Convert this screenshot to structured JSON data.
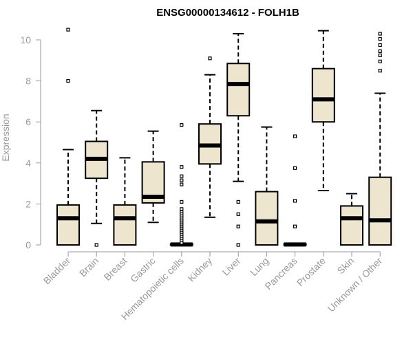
{
  "chart_data": {
    "type": "box",
    "title": "ENSG00000134612 - FOLH1B",
    "ylabel": "Expression",
    "xlabel": "",
    "ylim": [
      0,
      10.5
    ],
    "yticks": [
      0,
      2,
      4,
      6,
      8,
      10
    ],
    "grid": false,
    "colors": {
      "box_fill": "#ede5cd",
      "box_stroke": "#000000",
      "axis": "#999999",
      "label": "#999999"
    },
    "categories": [
      "Bladder",
      "Brain",
      "Breast",
      "Gastric",
      "Hematopoietic cells",
      "Kidney",
      "Liver",
      "Lung",
      "Pancreas",
      "Prostate",
      "Skin",
      "Unknown / Other"
    ],
    "boxes": [
      {
        "category": "Bladder",
        "min": 0,
        "q1": 0,
        "median": 1.3,
        "q3": 1.95,
        "max": 4.65,
        "outliers": [
          8.0,
          10.5
        ]
      },
      {
        "category": "Brain",
        "min": 1.05,
        "q1": 3.25,
        "median": 4.2,
        "q3": 5.05,
        "max": 6.55,
        "outliers": [
          0
        ]
      },
      {
        "category": "Breast",
        "min": 0,
        "q1": 0,
        "median": 1.3,
        "q3": 1.95,
        "max": 4.25,
        "outliers": []
      },
      {
        "category": "Gastric",
        "min": 1.1,
        "q1": 2.05,
        "median": 2.35,
        "q3": 4.05,
        "max": 5.55,
        "outliers": []
      },
      {
        "category": "Hematopoietic cells",
        "min": 0,
        "q1": 0,
        "median": 0.02,
        "q3": 0.05,
        "max": 0.05,
        "outliers": [
          5.85,
          3.8,
          3.35,
          3.15,
          2.95,
          2.1,
          1.75,
          1.6,
          1.5,
          1.4,
          1.3,
          1.2,
          1.1,
          1.0,
          0.9,
          0.8,
          0.7,
          0.6,
          0.5,
          0.4,
          0.3,
          0.2,
          0.1
        ]
      },
      {
        "category": "Kidney",
        "min": 1.35,
        "q1": 3.95,
        "median": 4.85,
        "q3": 5.9,
        "max": 8.3,
        "outliers": [
          9.1
        ]
      },
      {
        "category": "Liver",
        "min": 3.1,
        "q1": 6.3,
        "median": 7.85,
        "q3": 8.85,
        "max": 10.3,
        "outliers": [
          2.1,
          1.5,
          0.9,
          0
        ]
      },
      {
        "category": "Lung",
        "min": 0,
        "q1": 0,
        "median": 1.15,
        "q3": 2.6,
        "max": 5.75,
        "outliers": []
      },
      {
        "category": "Pancreas",
        "min": 0,
        "q1": 0,
        "median": 0.02,
        "q3": 0.05,
        "max": 0.05,
        "outliers": [
          5.3,
          3.75,
          2.15,
          0.9
        ]
      },
      {
        "category": "Prostate",
        "min": 2.65,
        "q1": 6.0,
        "median": 7.1,
        "q3": 8.6,
        "max": 10.45,
        "outliers": []
      },
      {
        "category": "Skin",
        "min": 0,
        "q1": 0,
        "median": 1.3,
        "q3": 1.9,
        "max": 2.5,
        "outliers": []
      },
      {
        "category": "Unknown / Other",
        "min": 0,
        "q1": 0,
        "median": 1.2,
        "q3": 3.3,
        "max": 7.4,
        "outliers": [
          8.5,
          8.95,
          9.25,
          9.45,
          9.75,
          10.05,
          10.3
        ]
      }
    ]
  }
}
